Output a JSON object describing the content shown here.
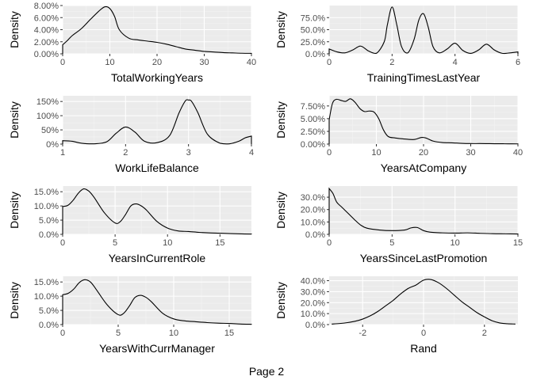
{
  "page": {
    "label": "Page 2"
  },
  "colors": {
    "panel_bg": "#ebebeb",
    "grid_major": "#ffffff",
    "grid_minor": "#f5f5f5",
    "line": "#000000"
  },
  "chart_data": [
    {
      "type": "line",
      "xlabel": "TotalWorkingYears",
      "ylabel": "Density",
      "xlim": [
        0,
        40
      ],
      "ylim": [
        0,
        0.08
      ],
      "x_ticks": [
        0,
        10,
        20,
        30,
        40
      ],
      "x_tick_labels": [
        "0",
        "10",
        "20",
        "30",
        "40"
      ],
      "y_ticks": [
        0,
        0.02,
        0.04,
        0.06,
        0.08
      ],
      "y_tick_labels": [
        "0.00%",
        "2.00%",
        "4.00%",
        "6.00%",
        "8.00%"
      ],
      "grid": true,
      "series": [
        {
          "x": [
            0,
            1,
            2,
            4,
            6,
            8,
            9,
            10,
            11,
            12,
            14,
            16,
            18,
            20,
            22,
            24,
            26,
            28,
            30,
            32,
            34,
            36,
            38,
            40
          ],
          "y": [
            0.015,
            0.022,
            0.03,
            0.042,
            0.058,
            0.073,
            0.078,
            0.075,
            0.062,
            0.04,
            0.026,
            0.023,
            0.021,
            0.019,
            0.016,
            0.012,
            0.008,
            0.006,
            0.004,
            0.003,
            0.002,
            0.0015,
            0.001,
            0.0008
          ]
        }
      ]
    },
    {
      "type": "line",
      "xlabel": "TrainingTimesLastYear",
      "ylabel": "Density",
      "xlim": [
        0,
        6
      ],
      "ylim": [
        0,
        1.0
      ],
      "x_ticks": [
        0,
        2,
        4,
        6
      ],
      "x_tick_labels": [
        "0",
        "2",
        "4",
        "6"
      ],
      "y_ticks": [
        0,
        0.25,
        0.5,
        0.75
      ],
      "y_tick_labels": [
        "0.0%",
        "25.0%",
        "50.0%",
        "75.0%"
      ],
      "grid": true,
      "series": [
        {
          "x": [
            0,
            0.25,
            0.5,
            0.75,
            1,
            1.25,
            1.5,
            1.75,
            1.85,
            2,
            2.15,
            2.3,
            2.5,
            2.7,
            2.85,
            3,
            3.15,
            3.3,
            3.5,
            3.75,
            4,
            4.25,
            4.5,
            4.75,
            5,
            5.25,
            5.5,
            5.75,
            6
          ],
          "y": [
            0.1,
            0.04,
            0.02,
            0.08,
            0.16,
            0.06,
            0.01,
            0.25,
            0.6,
            0.97,
            0.6,
            0.15,
            0.02,
            0.3,
            0.7,
            0.83,
            0.55,
            0.15,
            0.02,
            0.1,
            0.22,
            0.07,
            0.01,
            0.08,
            0.2,
            0.08,
            0.01,
            0.02,
            0.04
          ]
        }
      ]
    },
    {
      "type": "line",
      "xlabel": "WorkLifeBalance",
      "ylabel": "Density",
      "xlim": [
        1,
        4
      ],
      "ylim": [
        0,
        1.7
      ],
      "x_ticks": [
        1,
        2,
        3,
        4
      ],
      "x_tick_labels": [
        "1",
        "2",
        "3",
        "4"
      ],
      "y_ticks": [
        0,
        0.5,
        1.0,
        1.5
      ],
      "y_tick_labels": [
        "0%",
        "50%",
        "100%",
        "150%"
      ],
      "grid": true,
      "series": [
        {
          "x": [
            1,
            1.15,
            1.3,
            1.5,
            1.7,
            1.85,
            2,
            2.15,
            2.3,
            2.5,
            2.7,
            2.85,
            2.95,
            3,
            3.05,
            3.15,
            3.3,
            3.5,
            3.65,
            3.8,
            3.9,
            4
          ],
          "y": [
            0.12,
            0.1,
            0.03,
            0.01,
            0.08,
            0.38,
            0.6,
            0.42,
            0.1,
            0.05,
            0.3,
            1.1,
            1.52,
            1.55,
            1.5,
            1.1,
            0.35,
            0.03,
            0.01,
            0.1,
            0.22,
            0.28
          ]
        }
      ]
    },
    {
      "type": "line",
      "xlabel": "YearsAtCompany",
      "ylabel": "Density",
      "xlim": [
        0,
        40
      ],
      "ylim": [
        0,
        0.095
      ],
      "x_ticks": [
        0,
        10,
        20,
        30,
        40
      ],
      "x_tick_labels": [
        "0",
        "10",
        "20",
        "30",
        "40"
      ],
      "y_ticks": [
        0,
        0.025,
        0.05,
        0.075
      ],
      "y_tick_labels": [
        "0.00%",
        "2.50%",
        "5.00%",
        "7.50%"
      ],
      "grid": true,
      "series": [
        {
          "x": [
            0,
            0.7,
            1.5,
            2.5,
            3.5,
            4.5,
            5.5,
            6.5,
            7.5,
            8.5,
            9.5,
            10.5,
            11.5,
            12.5,
            14,
            16,
            18,
            19.5,
            20.5,
            22,
            24,
            26,
            28,
            30,
            32,
            34,
            36,
            38,
            40
          ],
          "y": [
            0.048,
            0.08,
            0.088,
            0.086,
            0.084,
            0.089,
            0.082,
            0.07,
            0.064,
            0.065,
            0.063,
            0.05,
            0.028,
            0.015,
            0.012,
            0.01,
            0.009,
            0.013,
            0.012,
            0.006,
            0.003,
            0.0025,
            0.0015,
            0.001,
            0.001,
            0.0008,
            0.0007,
            0.0005,
            0.0004
          ]
        }
      ]
    },
    {
      "type": "line",
      "xlabel": "YearsInCurrentRole",
      "ylabel": "Density",
      "xlim": [
        0,
        18
      ],
      "ylim": [
        0,
        0.17
      ],
      "x_ticks": [
        0,
        5,
        10,
        15
      ],
      "x_tick_labels": [
        "0",
        "5",
        "10",
        "15"
      ],
      "y_ticks": [
        0,
        0.05,
        0.1,
        0.15
      ],
      "y_tick_labels": [
        "0.0%",
        "5.0%",
        "10.0%",
        "15.0%"
      ],
      "grid": true,
      "series": [
        {
          "x": [
            0,
            0.5,
            1,
            1.5,
            2,
            2.5,
            3,
            4,
            5,
            5.5,
            6,
            6.5,
            7,
            7.5,
            8,
            9,
            10,
            11,
            12,
            13,
            14,
            15,
            16,
            17,
            18
          ],
          "y": [
            0.098,
            0.102,
            0.12,
            0.145,
            0.16,
            0.152,
            0.13,
            0.075,
            0.04,
            0.045,
            0.07,
            0.1,
            0.107,
            0.1,
            0.085,
            0.045,
            0.022,
            0.012,
            0.01,
            0.007,
            0.005,
            0.004,
            0.0025,
            0.0015,
            0.001
          ]
        }
      ]
    },
    {
      "type": "line",
      "xlabel": "YearsSinceLastPromotion",
      "ylabel": "Density",
      "xlim": [
        0,
        15
      ],
      "ylim": [
        0,
        0.39
      ],
      "x_ticks": [
        0,
        5,
        10,
        15
      ],
      "x_tick_labels": [
        "0",
        "5",
        "10",
        "15"
      ],
      "y_ticks": [
        0,
        0.1,
        0.2,
        0.3
      ],
      "y_tick_labels": [
        "0.0%",
        "10.0%",
        "20.0%",
        "30.0%"
      ],
      "grid": true,
      "series": [
        {
          "x": [
            0,
            0.3,
            0.6,
            1,
            1.5,
            2,
            2.5,
            3,
            4,
            5,
            6,
            6.5,
            7,
            7.5,
            8,
            9,
            10,
            11,
            12,
            13,
            14,
            15
          ],
          "y": [
            0.37,
            0.33,
            0.26,
            0.22,
            0.17,
            0.12,
            0.075,
            0.05,
            0.035,
            0.03,
            0.035,
            0.052,
            0.055,
            0.03,
            0.018,
            0.012,
            0.01,
            0.012,
            0.008,
            0.005,
            0.004,
            0.003
          ]
        }
      ]
    },
    {
      "type": "line",
      "xlabel": "YearsWithCurrManager",
      "ylabel": "Density",
      "xlim": [
        0,
        17
      ],
      "ylim": [
        0,
        0.17
      ],
      "x_ticks": [
        0,
        5,
        10,
        15
      ],
      "x_tick_labels": [
        "0",
        "5",
        "10",
        "15"
      ],
      "y_ticks": [
        0,
        0.05,
        0.1,
        0.15
      ],
      "y_tick_labels": [
        "0.0%",
        "5.0%",
        "10.0%",
        "15.0%"
      ],
      "grid": true,
      "series": [
        {
          "x": [
            0,
            0.5,
            1,
            1.5,
            2,
            2.5,
            3,
            4,
            5,
            5.5,
            6,
            6.5,
            7,
            7.5,
            8,
            9,
            10,
            11,
            12,
            13,
            14,
            15,
            16,
            17
          ],
          "y": [
            0.105,
            0.11,
            0.125,
            0.148,
            0.158,
            0.15,
            0.125,
            0.07,
            0.035,
            0.04,
            0.065,
            0.095,
            0.103,
            0.096,
            0.08,
            0.04,
            0.02,
            0.013,
            0.01,
            0.007,
            0.005,
            0.004,
            0.002,
            0.001
          ]
        }
      ]
    },
    {
      "type": "line",
      "xlabel": "Rand",
      "ylabel": "Density",
      "xlim": [
        -3.1,
        3.1
      ],
      "ylim": [
        0,
        0.44
      ],
      "x_ticks": [
        -2,
        0,
        2
      ],
      "x_tick_labels": [
        "-2",
        "0",
        "2"
      ],
      "y_ticks": [
        0,
        0.1,
        0.2,
        0.3,
        0.4
      ],
      "y_tick_labels": [
        "0.0%",
        "10.0%",
        "20.0%",
        "30.0%",
        "40.0%"
      ],
      "grid": true,
      "series": [
        {
          "x": [
            -3,
            -2.75,
            -2.5,
            -2.25,
            -2,
            -1.75,
            -1.5,
            -1.25,
            -1,
            -0.75,
            -0.5,
            -0.25,
            0,
            0.25,
            0.5,
            0.75,
            1,
            1.25,
            1.5,
            1.75,
            2,
            2.25,
            2.5,
            2.75,
            3
          ],
          "y": [
            0.005,
            0.01,
            0.018,
            0.03,
            0.05,
            0.08,
            0.12,
            0.17,
            0.22,
            0.28,
            0.33,
            0.36,
            0.405,
            0.41,
            0.38,
            0.33,
            0.27,
            0.21,
            0.16,
            0.11,
            0.07,
            0.035,
            0.015,
            0.008,
            0.005
          ]
        }
      ]
    }
  ]
}
